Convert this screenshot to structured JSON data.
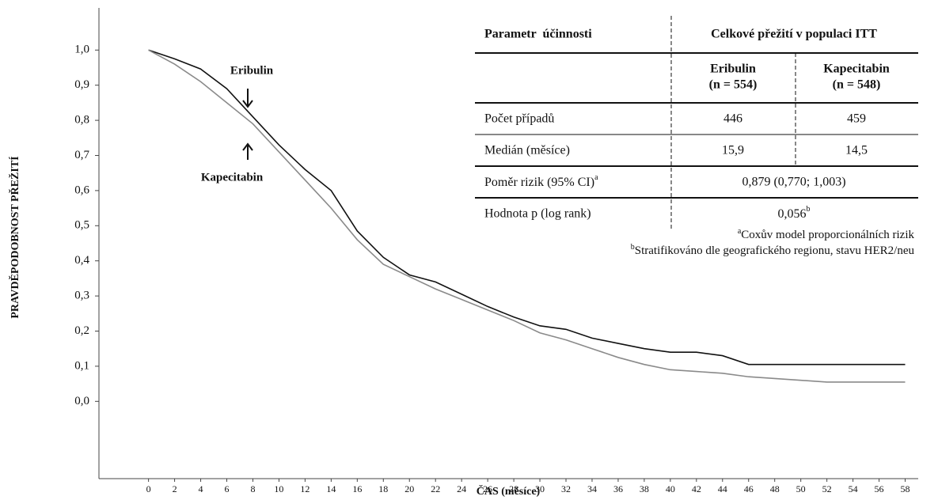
{
  "chart_data": {
    "type": "line",
    "x_label": "ČAS (měsíce)",
    "y_label": "PRAVDĚPODOBNOST PŘEŽITÍ",
    "x": [
      0,
      2,
      4,
      6,
      8,
      10,
      12,
      14,
      16,
      18,
      20,
      22,
      24,
      26,
      28,
      30,
      32,
      34,
      36,
      38,
      40,
      42,
      44,
      46,
      48,
      50,
      52,
      54,
      56,
      58
    ],
    "series": [
      {
        "name": "Eribulin",
        "color": "#111111",
        "values": [
          1.0,
          0.975,
          0.946,
          0.89,
          0.81,
          0.73,
          0.66,
          0.6,
          0.485,
          0.41,
          0.36,
          0.34,
          0.305,
          0.27,
          0.24,
          0.215,
          0.205,
          0.18,
          0.165,
          0.15,
          0.14,
          0.14,
          0.13,
          0.105,
          0.105,
          0.105,
          0.105,
          0.105,
          0.105,
          0.105
        ]
      },
      {
        "name": "Kapecitabin",
        "color": "#8a8a8a",
        "values": [
          1.0,
          0.96,
          0.91,
          0.85,
          0.79,
          0.71,
          0.63,
          0.55,
          0.46,
          0.39,
          0.355,
          0.32,
          0.29,
          0.26,
          0.23,
          0.195,
          0.175,
          0.15,
          0.125,
          0.105,
          0.09,
          0.085,
          0.08,
          0.07,
          0.065,
          0.06,
          0.055,
          0.055,
          0.055,
          0.055
        ]
      }
    ],
    "annotations": [
      {
        "text": "Eribulin"
      },
      {
        "text": "Kapecitabin"
      }
    ],
    "xlim": [
      -3.8,
      59
    ],
    "ylim": [
      -0.22,
      1.12
    ],
    "xticks": [
      0,
      2,
      4,
      6,
      8,
      10,
      12,
      14,
      16,
      18,
      20,
      22,
      24,
      26,
      28,
      30,
      32,
      34,
      36,
      38,
      40,
      42,
      44,
      46,
      48,
      50,
      52,
      54,
      56,
      58
    ],
    "yticks": [
      {
        "value": 0,
        "label": "0,0"
      },
      {
        "value": 0.1,
        "label": "0,1"
      },
      {
        "value": 0.2,
        "label": "0,2"
      },
      {
        "value": 0.3,
        "label": "0,3"
      },
      {
        "value": 0.4,
        "label": "0,4"
      },
      {
        "value": 0.5,
        "label": "0,5"
      },
      {
        "value": 0.6,
        "label": "0,6"
      },
      {
        "value": 0.7,
        "label": "0,7"
      },
      {
        "value": 0.8,
        "label": "0,8"
      },
      {
        "value": 0.9,
        "label": "0,9"
      },
      {
        "value": 1.0,
        "label": "1,0"
      }
    ],
    "grid": false
  },
  "table": {
    "header": [
      "Parametr  účinnosti",
      "Celkové přežití v populaci ITT"
    ],
    "subheader": [
      [
        "Eribulin",
        "(n = 554)"
      ],
      [
        "Kapecitabin",
        "(n = 548)"
      ]
    ],
    "rows": [
      [
        "Počet případů",
        "446",
        "459"
      ],
      [
        "Medián (měsíce)",
        "15,9",
        "14,5"
      ]
    ],
    "hazard_ratio": {
      "label": "Poměr rizik (95% CI)",
      "label_sup": "a",
      "value": "0,879 (0,770; 1,003)"
    },
    "p_value": {
      "label": "Hodnota p (log rank)",
      "value": "0,056",
      "value_sup": "b"
    },
    "footnotes": [
      {
        "mark": "a",
        "text": "Coxův model proporcionálních rizik"
      },
      {
        "mark": "b",
        "text": "Stratifikováno dle geografického regionu, stavu HER2/neu"
      }
    ]
  }
}
